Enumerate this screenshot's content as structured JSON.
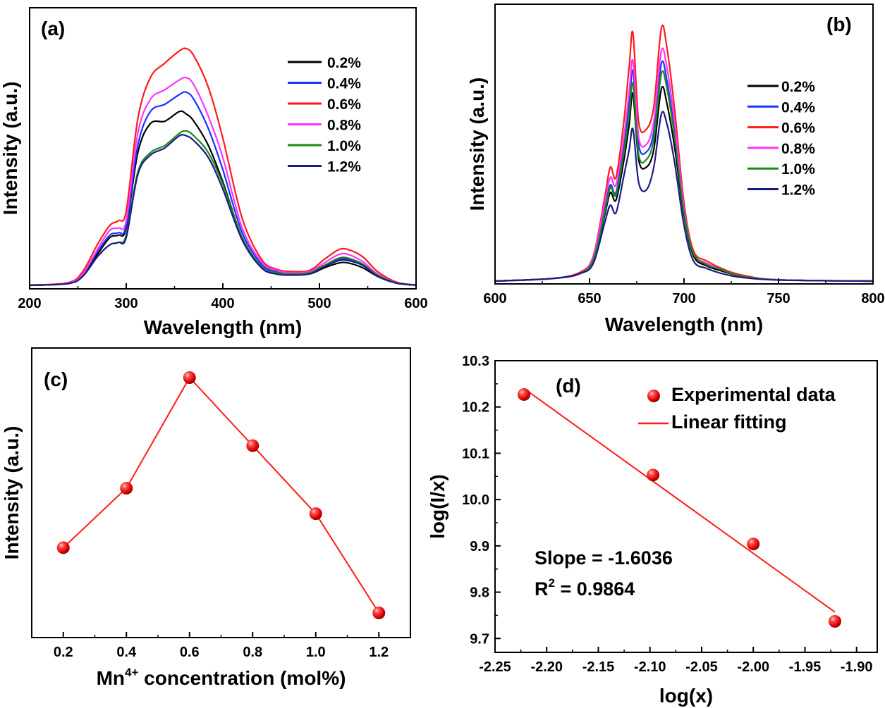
{
  "chart_data": [
    {
      "panel": "(a)",
      "type": "line",
      "xlabel": "Wavelength (nm)",
      "ylabel": "Intensity (a.u.)",
      "xlim": [
        200,
        600
      ],
      "ylim": [
        0,
        1
      ],
      "xticks": [
        200,
        300,
        400,
        500,
        600
      ],
      "y_tick_labels_shown": false,
      "legend": {
        "position": "top-right"
      },
      "x": [
        200,
        240,
        255,
        270,
        283,
        292,
        300,
        312,
        325,
        340,
        355,
        362,
        370,
        385,
        400,
        420,
        440,
        455,
        470,
        490,
        505,
        520,
        530,
        545,
        560,
        580,
        600
      ],
      "series": [
        {
          "name": "0.2%",
          "color": "#000000",
          "values": [
            0.003,
            0.012,
            0.05,
            0.13,
            0.2,
            0.21,
            0.24,
            0.55,
            0.67,
            0.68,
            0.72,
            0.71,
            0.68,
            0.58,
            0.43,
            0.2,
            0.08,
            0.055,
            0.05,
            0.05,
            0.075,
            0.095,
            0.095,
            0.075,
            0.04,
            0.012,
            0.004
          ]
        },
        {
          "name": "0.4%",
          "color": "#1a33ff",
          "values": [
            0.003,
            0.012,
            0.05,
            0.14,
            0.21,
            0.22,
            0.25,
            0.58,
            0.72,
            0.75,
            0.79,
            0.8,
            0.77,
            0.65,
            0.48,
            0.22,
            0.09,
            0.06,
            0.05,
            0.055,
            0.085,
            0.11,
            0.11,
            0.085,
            0.045,
            0.012,
            0.004
          ]
        },
        {
          "name": "0.6%",
          "color": "#ff1a1a",
          "values": [
            0.004,
            0.014,
            0.06,
            0.17,
            0.25,
            0.27,
            0.31,
            0.69,
            0.86,
            0.92,
            0.97,
            0.98,
            0.95,
            0.82,
            0.61,
            0.28,
            0.11,
            0.07,
            0.06,
            0.065,
            0.11,
            0.15,
            0.15,
            0.12,
            0.06,
            0.016,
            0.004
          ]
        },
        {
          "name": "0.8%",
          "color": "#ff33ff",
          "values": [
            0.003,
            0.012,
            0.05,
            0.15,
            0.23,
            0.24,
            0.27,
            0.63,
            0.77,
            0.81,
            0.85,
            0.86,
            0.83,
            0.7,
            0.53,
            0.24,
            0.1,
            0.065,
            0.055,
            0.06,
            0.095,
            0.13,
            0.13,
            0.1,
            0.05,
            0.014,
            0.004
          ]
        },
        {
          "name": "1.0%",
          "color": "#1a8a1a",
          "values": [
            0.003,
            0.01,
            0.04,
            0.12,
            0.17,
            0.18,
            0.21,
            0.47,
            0.55,
            0.58,
            0.63,
            0.64,
            0.62,
            0.55,
            0.42,
            0.2,
            0.08,
            0.055,
            0.05,
            0.055,
            0.085,
            0.115,
            0.115,
            0.09,
            0.045,
            0.012,
            0.004
          ]
        },
        {
          "name": "1.2%",
          "color": "#1a1a8a",
          "values": [
            0.003,
            0.01,
            0.04,
            0.12,
            0.17,
            0.18,
            0.2,
            0.46,
            0.54,
            0.57,
            0.62,
            0.62,
            0.6,
            0.53,
            0.4,
            0.19,
            0.075,
            0.05,
            0.045,
            0.05,
            0.08,
            0.105,
            0.105,
            0.085,
            0.04,
            0.012,
            0.004
          ]
        }
      ]
    },
    {
      "panel": "(b)",
      "type": "line",
      "xlabel": "Wavelength (nm)",
      "ylabel": "Intensity (a.u.)",
      "xlim": [
        600,
        800
      ],
      "ylim": [
        0,
        1
      ],
      "xticks": [
        600,
        650,
        700,
        750,
        800
      ],
      "y_tick_labels_shown": false,
      "legend": {
        "position": "center-right"
      },
      "x": [
        600,
        630,
        645,
        652,
        658,
        661,
        664,
        668,
        671,
        673,
        676,
        680,
        684,
        688,
        691,
        695,
        700,
        705,
        712,
        720,
        730,
        750,
        800
      ],
      "series": [
        {
          "name": "0.2%",
          "color": "#000000",
          "values": [
            0.0,
            0.01,
            0.03,
            0.08,
            0.26,
            0.35,
            0.32,
            0.47,
            0.62,
            0.74,
            0.48,
            0.45,
            0.52,
            0.76,
            0.7,
            0.53,
            0.26,
            0.1,
            0.06,
            0.04,
            0.02,
            0.005,
            0.0
          ]
        },
        {
          "name": "0.4%",
          "color": "#1a33ff",
          "values": [
            0.0,
            0.01,
            0.03,
            0.09,
            0.29,
            0.38,
            0.35,
            0.52,
            0.7,
            0.83,
            0.54,
            0.51,
            0.59,
            0.86,
            0.79,
            0.59,
            0.28,
            0.11,
            0.07,
            0.045,
            0.02,
            0.005,
            0.0
          ]
        },
        {
          "name": "0.6%",
          "color": "#ff1a1a",
          "values": [
            0.0,
            0.01,
            0.035,
            0.1,
            0.33,
            0.45,
            0.41,
            0.62,
            0.85,
            0.98,
            0.63,
            0.6,
            0.69,
            1.0,
            0.92,
            0.68,
            0.31,
            0.12,
            0.08,
            0.05,
            0.025,
            0.005,
            0.0
          ]
        },
        {
          "name": "0.8%",
          "color": "#ff33ff",
          "values": [
            0.0,
            0.01,
            0.03,
            0.095,
            0.31,
            0.41,
            0.38,
            0.56,
            0.75,
            0.87,
            0.57,
            0.54,
            0.63,
            0.91,
            0.84,
            0.63,
            0.29,
            0.11,
            0.07,
            0.045,
            0.02,
            0.005,
            0.0
          ]
        },
        {
          "name": "1.0%",
          "color": "#1a8a1a",
          "values": [
            0.0,
            0.01,
            0.03,
            0.085,
            0.27,
            0.37,
            0.34,
            0.5,
            0.66,
            0.78,
            0.5,
            0.48,
            0.56,
            0.82,
            0.76,
            0.57,
            0.27,
            0.11,
            0.065,
            0.045,
            0.02,
            0.005,
            0.0
          ]
        },
        {
          "name": "1.2%",
          "color": "#1a1a8a",
          "values": [
            0.0,
            0.01,
            0.03,
            0.07,
            0.23,
            0.3,
            0.27,
            0.41,
            0.52,
            0.6,
            0.39,
            0.36,
            0.45,
            0.66,
            0.62,
            0.47,
            0.22,
            0.08,
            0.05,
            0.03,
            0.015,
            0.004,
            0.0
          ]
        }
      ]
    },
    {
      "panel": "(c)",
      "type": "line",
      "xlabel": "Mn",
      "xlabel_superscript": "4+",
      "xlabel_suffix": " concentration (mol%)",
      "ylabel": "Intensity (a.u.)",
      "xlim": [
        0.1,
        1.3
      ],
      "ylim": [
        0,
        1
      ],
      "xticks": [
        0.2,
        0.4,
        0.6,
        0.8,
        1.0,
        1.2
      ],
      "xtick_labels": [
        "0.2",
        "0.4",
        "0.6",
        "0.8",
        "1.0",
        "1.2"
      ],
      "y_tick_labels_shown": false,
      "color": "#ff1a1a",
      "markers": "sphere",
      "x": [
        0.2,
        0.4,
        0.6,
        0.8,
        1.0,
        1.2
      ],
      "values": [
        0.36,
        0.57,
        0.96,
        0.72,
        0.48,
        0.13
      ]
    },
    {
      "panel": "(d)",
      "type": "scatter",
      "xlabel": "log(x)",
      "ylabel": "log(I/x)",
      "xlim": [
        -2.25,
        -1.88
      ],
      "ylim": [
        9.67,
        10.3
      ],
      "xticks": [
        -2.25,
        -2.2,
        -2.15,
        -2.1,
        -2.05,
        -2.0,
        -1.95,
        -1.9
      ],
      "xtick_labels": [
        "-2.25",
        "-2.20",
        "-2.15",
        "-2.10",
        "-2.05",
        "-2.00",
        "-1.95",
        "-1.90"
      ],
      "yticks": [
        9.7,
        9.8,
        9.9,
        10.0,
        10.1,
        10.2,
        10.3
      ],
      "ytick_labels": [
        "9.7",
        "9.8",
        "9.9",
        "10.0",
        "10.1",
        "10.2",
        "10.3"
      ],
      "legend": {
        "position": "top-right",
        "entries": [
          "Experimental data",
          "Linear fitting"
        ]
      },
      "points": {
        "x": [
          -2.222,
          -2.097,
          -2.0,
          -1.921
        ],
        "y": [
          10.227,
          10.053,
          9.904,
          9.737
        ]
      },
      "fit_line": {
        "x": [
          -2.222,
          -1.921
        ],
        "y": [
          10.24,
          9.757
        ]
      },
      "color": "#ff1a1a",
      "annotations": {
        "slope": "Slope = -1.6036",
        "r2_prefix": "R",
        "r2_superscript": "2",
        "r2_suffix": " = 0.9864"
      }
    }
  ]
}
